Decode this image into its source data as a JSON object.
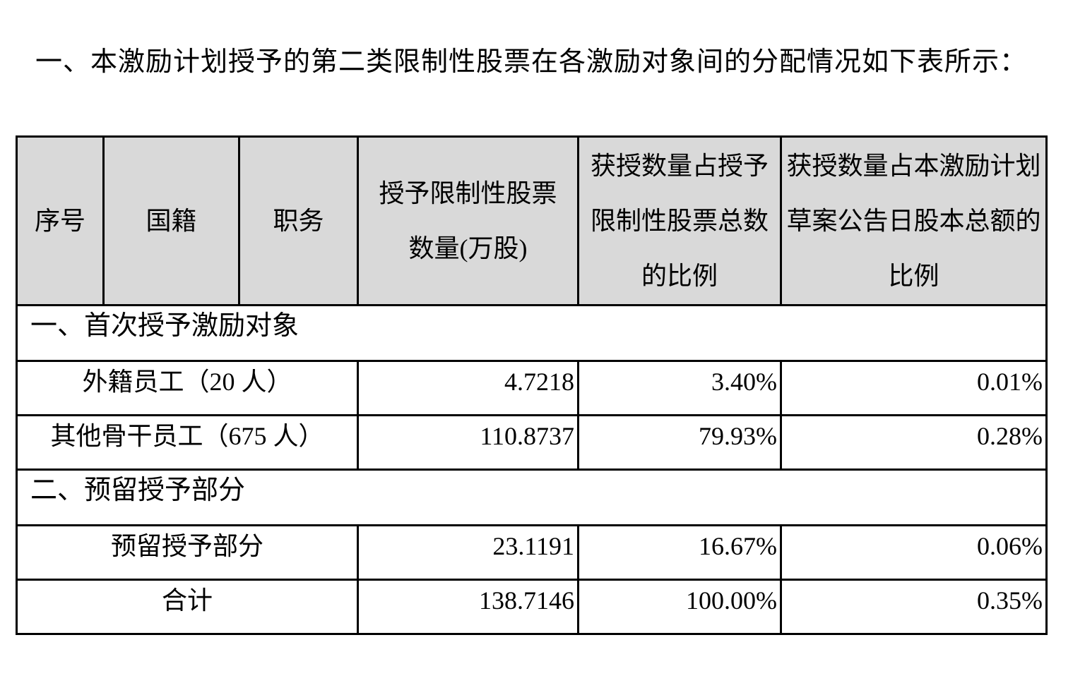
{
  "title": "一、本激励计划授予的第二类限制性股票在各激励对象间的分配情况如下表所示：",
  "table": {
    "headers": [
      "序号",
      "国籍",
      "职务",
      "授予限制性股票数量(万股)",
      "获授数量占授予限制性股票总数的比例",
      "获授数量占本激励计划草案公告日股本总额的比例"
    ],
    "section1": "一、首次授予激励对象",
    "section2": "二、预留授予部分",
    "rows": [
      {
        "label": "外籍员工（20 人）",
        "shares": "4.7218",
        "pct_grant": "3.40%",
        "pct_total": "0.01%"
      },
      {
        "label": "其他骨干员工（675 人）",
        "shares": "110.8737",
        "pct_grant": "79.93%",
        "pct_total": "0.28%"
      },
      {
        "label": "预留授予部分",
        "shares": "23.1191",
        "pct_grant": "16.67%",
        "pct_total": "0.06%"
      },
      {
        "label": "合计",
        "shares": "138.7146",
        "pct_grant": "100.00%",
        "pct_total": "0.35%"
      }
    ]
  }
}
